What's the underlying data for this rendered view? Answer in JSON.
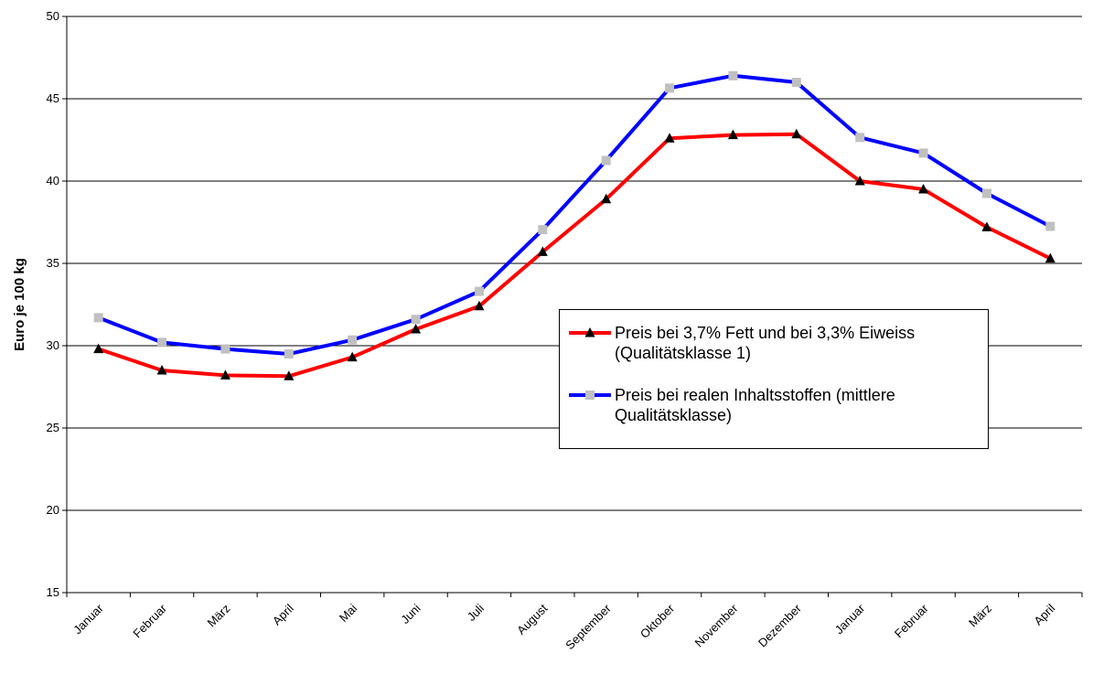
{
  "chart_data": {
    "type": "line",
    "y_label": "Euro je 100 kg",
    "categories": [
      "Januar",
      "Februar",
      "März",
      "April",
      "Mai",
      "Juni",
      "Juli",
      "August",
      "September",
      "Oktober",
      "November",
      "Dezember",
      "Januar",
      "Februar",
      "März",
      "April"
    ],
    "series": [
      {
        "name": "Preis bei 3,7% Fett und bei 3,3% Eiweiss (Qualitätsklasse 1)",
        "color": "#ff0000",
        "marker": "triangle",
        "marker_color": "#000000",
        "values": [
          29.8,
          28.5,
          28.2,
          28.15,
          29.3,
          31.0,
          32.4,
          35.7,
          38.9,
          42.6,
          42.8,
          42.85,
          40.0,
          39.5,
          37.2,
          35.3
        ]
      },
      {
        "name": "Preis bei realen Inhaltsstoffen (mittlere Qualitätsklasse)",
        "color": "#0000ff",
        "marker": "square",
        "marker_color": "#c0c0c0",
        "values": [
          31.7,
          30.2,
          29.8,
          29.5,
          30.35,
          31.6,
          33.3,
          37.05,
          41.25,
          45.65,
          46.4,
          46.0,
          42.65,
          41.7,
          39.25,
          37.25
        ]
      }
    ],
    "ylim": [
      15,
      50
    ],
    "yticks": [
      15,
      20,
      25,
      30,
      35,
      40,
      45,
      50
    ],
    "grid": true
  }
}
